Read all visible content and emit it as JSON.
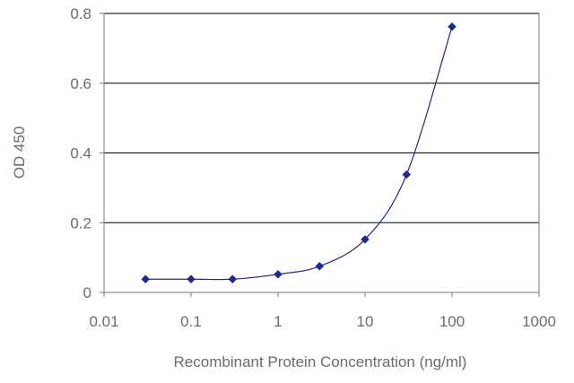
{
  "chart_data": {
    "type": "line",
    "title": "",
    "xlabel": "Recombinant Protein Concentration (ng/ml)",
    "ylabel": "OD 450",
    "x_scale": "log",
    "xlim": [
      0.01,
      1000
    ],
    "ylim": [
      0,
      0.8
    ],
    "x_ticks": [
      {
        "value": 0.01,
        "label": "0.01"
      },
      {
        "value": 0.1,
        "label": "0.1"
      },
      {
        "value": 1,
        "label": "1"
      },
      {
        "value": 10,
        "label": "10"
      },
      {
        "value": 100,
        "label": "100"
      },
      {
        "value": 1000,
        "label": "1000"
      }
    ],
    "y_ticks": [
      {
        "value": 0,
        "label": "0"
      },
      {
        "value": 0.2,
        "label": "0.2"
      },
      {
        "value": 0.4,
        "label": "0.4"
      },
      {
        "value": 0.6,
        "label": "0.6"
      },
      {
        "value": 0.8,
        "label": "0.8"
      }
    ],
    "grid": "horizontal",
    "legend": "none",
    "series": [
      {
        "x": [
          0.03,
          0.1,
          0.3,
          1,
          3,
          10,
          30,
          100
        ],
        "y": [
          0.038,
          0.038,
          0.038,
          0.052,
          0.075,
          0.152,
          0.338,
          0.762
        ]
      }
    ],
    "colors": {
      "series": "#1f2a8c",
      "gridline": "#000000",
      "axis": "#7a7a7a",
      "text": "#6b6b6b"
    }
  }
}
